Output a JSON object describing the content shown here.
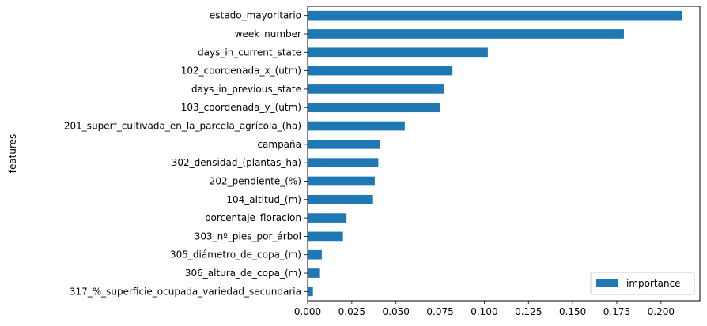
{
  "chart_data": {
    "type": "bar",
    "orientation": "horizontal",
    "ylabel": "features",
    "xlabel": "",
    "xlim": [
      0,
      0.222
    ],
    "xticks": [
      "0.000",
      "0.025",
      "0.050",
      "0.075",
      "0.100",
      "0.125",
      "0.150",
      "0.175",
      "0.200"
    ],
    "legend_position": "lower-right",
    "bar_color": "#1f77b4",
    "grid": false,
    "series": [
      {
        "name": "importance",
        "categories": [
          "estado_mayoritario",
          "week_number",
          "days_in_current_state",
          "102_coordenada_x_(utm)",
          "days_in_previous_state",
          "103_coordenada_y_(utm)",
          "201_superf_cultivada_en_la_parcela_agrícola_(ha)",
          "campaña",
          "302_densidad_(plantas_ha)",
          "202_pendiente_(%)",
          "104_altitud_(m)",
          "porcentaje_floracion",
          "303_nº_pies_por_árbol",
          "305_diámetro_de_copa_(m)",
          "306_altura_de_copa_(m)",
          "317_%_superficie_ocupada_variedad_secundaria"
        ],
        "values": [
          0.212,
          0.179,
          0.102,
          0.082,
          0.077,
          0.075,
          0.055,
          0.041,
          0.04,
          0.038,
          0.037,
          0.022,
          0.02,
          0.008,
          0.007,
          0.003
        ]
      }
    ]
  }
}
